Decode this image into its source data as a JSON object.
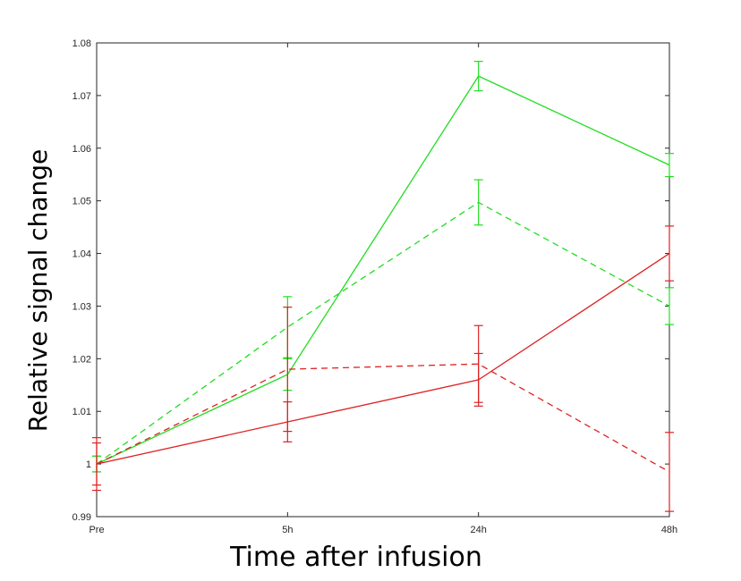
{
  "chart_data": {
    "type": "line",
    "title": "",
    "xlabel": "Time after infusion",
    "ylabel": "Relative signal change",
    "categories": [
      "Pre",
      "5h",
      "24h",
      "48h"
    ],
    "ylim": [
      0.99,
      1.08
    ],
    "yticks": [
      0.99,
      1,
      1.01,
      1.02,
      1.03,
      1.04,
      1.05,
      1.06,
      1.07,
      1.08
    ],
    "ytick_labels": [
      "0.99",
      "1",
      "1.01",
      "1.02",
      "1.03",
      "1.04",
      "1.05",
      "1.06",
      "1.07",
      "1.08"
    ],
    "grid": false,
    "legend": "none",
    "series": [
      {
        "color": "#22dd22",
        "dash": "solid",
        "values": [
          1.0,
          1.017,
          1.0737,
          1.0568
        ],
        "err": [
          0.0015,
          0.003,
          0.0028,
          0.0022
        ]
      },
      {
        "color": "#22dd22",
        "dash": "dashed",
        "values": [
          1.0,
          1.026,
          1.0497,
          1.03
        ],
        "err": [
          0.0015,
          0.0058,
          0.0043,
          0.0035
        ]
      },
      {
        "color": "#dd2222",
        "dash": "solid",
        "values": [
          1.0,
          1.008,
          1.016,
          1.04
        ],
        "err": [
          0.004,
          0.0038,
          0.005,
          0.0052
        ]
      },
      {
        "color": "#dd2222",
        "dash": "dashed",
        "values": [
          1.0,
          1.018,
          1.019,
          0.9985
        ],
        "err": [
          0.005,
          0.0118,
          0.0073,
          0.0075
        ]
      }
    ]
  }
}
